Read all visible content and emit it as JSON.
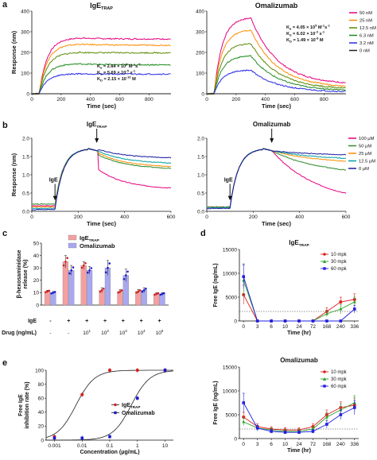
{
  "colors": {
    "c50": "#e6007e",
    "c25": "#ff8c00",
    "c12": "#5a8a00",
    "c6": "#1e8c1e",
    "c3": "#2a2ae6",
    "c0": "#222222",
    "b100": "#e6007e",
    "b50": "#2e8b2e",
    "b25": "#ff8c00",
    "b12": "#00a0a0",
    "b0": "#1a1aa0",
    "trap": "#f4a0a0",
    "trapDot": "#d42020",
    "oma": "#a8a8f0",
    "omaDot": "#1a1ad0",
    "m10": "#e02020",
    "m30": "#2aa02a",
    "m60": "#2020e0"
  },
  "panel_labels": {
    "a": "a",
    "b": "b",
    "c": "c",
    "d": "d",
    "e": "e"
  },
  "chart_data": [
    {
      "id": "a_left",
      "type": "line",
      "title_main": "IgE",
      "title_sub": "TRAP",
      "xlabel": "Time (sec)",
      "ylabel": "Response (nm)",
      "xlim": [
        0,
        950
      ],
      "ylim": [
        0,
        400
      ],
      "xticks": [
        0,
        200,
        400,
        600,
        800
      ],
      "yticks": [
        0,
        100,
        200,
        300,
        400
      ],
      "association_end": 300,
      "kinetics": [
        "K",
        "a",
        " = 2.64 × 10",
        "5",
        " M",
        "-1",
        "s",
        "-1",
        "K",
        "d",
        " = 5.69 × 10",
        "-5",
        " s",
        "-1",
        "K",
        "D",
        " = 2.15 × 10",
        "-10",
        " M"
      ],
      "series": [
        {
          "color_key": "c50",
          "plateau": 270,
          "end": 265
        },
        {
          "color_key": "c25",
          "plateau": 240,
          "end": 235
        },
        {
          "color_key": "c12",
          "plateau": 200,
          "end": 198
        },
        {
          "color_key": "c6",
          "plateau": 145,
          "end": 140
        },
        {
          "color_key": "c3",
          "plateau": 97,
          "end": 95
        },
        {
          "color_key": "c0",
          "plateau": 0,
          "end": 0
        }
      ]
    },
    {
      "id": "a_right",
      "type": "line",
      "title": "Omalizumab",
      "xlabel": "Time (sec)",
      "ylabel": "",
      "xlim": [
        0,
        950
      ],
      "ylim": [
        0,
        400
      ],
      "xticks": [
        0,
        200,
        400,
        600,
        800
      ],
      "yticks": [
        0,
        100,
        200,
        300,
        400
      ],
      "association_end": 300,
      "kinetics": [
        "K",
        "a",
        " = 4.05 × 10",
        "5",
        " M",
        "-1",
        "s",
        "-1",
        "K",
        "d",
        " = 6.02 × 10",
        "-3",
        " s",
        "-1",
        "K",
        "D",
        " = 1.49 × 10",
        "-8",
        " M"
      ],
      "legend": [
        "50 nM",
        "25 nM",
        "12.5 nM",
        "6.3 nM",
        "3.2 nM",
        "0 nM"
      ],
      "series": [
        {
          "color_key": "c50",
          "plateau": 370,
          "end": 45
        },
        {
          "color_key": "c25",
          "plateau": 310,
          "end": 30
        },
        {
          "color_key": "c12",
          "plateau": 245,
          "end": 22
        },
        {
          "color_key": "c6",
          "plateau": 185,
          "end": 14
        },
        {
          "color_key": "c3",
          "plateau": 115,
          "end": 8
        },
        {
          "color_key": "c0",
          "plateau": 0,
          "end": 0
        }
      ]
    },
    {
      "id": "b_left",
      "type": "line",
      "title_main": "IgE",
      "title_sub": "TRAP",
      "ige_label": "IgE",
      "xlabel": "Time (sec)",
      "ylabel": "Response (nm)",
      "xlim": [
        0,
        600
      ],
      "ylim": [
        0,
        2.0
      ],
      "xticks": [
        0,
        200,
        400,
        600
      ],
      "yticks": [
        0.0,
        0.5,
        1.0,
        1.5,
        2.0
      ],
      "series": [
        {
          "color_key": "b100",
          "base": 0.15,
          "drop": 1.15,
          "end": 0.6
        },
        {
          "color_key": "b50",
          "base": 0.2,
          "drop": 1.55,
          "end": 1.15
        },
        {
          "color_key": "b25",
          "base": 0.12,
          "drop": 1.6,
          "end": 1.2
        },
        {
          "color_key": "b12",
          "base": 0.08,
          "drop": 1.65,
          "end": 1.3
        },
        {
          "color_key": "b0",
          "base": 0.05,
          "drop": 1.7,
          "end": 1.45
        }
      ]
    },
    {
      "id": "b_right",
      "type": "line",
      "title": "Omalizumab",
      "ige_label": "IgE",
      "xlabel": "Time (sec)",
      "ylabel": "",
      "xlim": [
        0,
        600
      ],
      "ylim": [
        0,
        2.0
      ],
      "xticks": [
        0,
        200,
        400,
        600
      ],
      "yticks": [
        0.0,
        0.5,
        1.0,
        1.5,
        2.0
      ],
      "legend": [
        "100 μM",
        "50 μM",
        "25 μM",
        "12.5 μM",
        "0 μM"
      ],
      "series": [
        {
          "color_key": "b100",
          "base": 0.12,
          "end": 0.2
        },
        {
          "color_key": "b50",
          "base": 0.12,
          "end": 1.0
        },
        {
          "color_key": "b25",
          "base": 0.1,
          "end": 1.3
        },
        {
          "color_key": "b12",
          "base": 0.1,
          "end": 1.4
        },
        {
          "color_key": "b0",
          "base": 0.08,
          "end": 1.52
        }
      ]
    },
    {
      "id": "c",
      "type": "bar",
      "ylabel_1": "β-hexosaminidase",
      "ylabel_2": "release (%)",
      "ylim": [
        0,
        50
      ],
      "yticks": [
        0,
        10,
        20,
        30,
        40,
        50
      ],
      "row_ige_label": "IgE",
      "row_drug_label": "Drug (ng/mL)",
      "ige_row": [
        "-",
        "+",
        "+",
        "+",
        "+",
        "+",
        "+"
      ],
      "drug_row": [
        "-",
        "-",
        "10",
        "10",
        "10",
        "10",
        "10"
      ],
      "drug_exp": [
        "",
        "",
        "1",
        "2",
        "3",
        "4",
        "5"
      ],
      "legend": [
        {
          "main": "IgE",
          "sub": "TRAP"
        },
        {
          "main": "Omalizumab",
          "sub": ""
        }
      ],
      "series": [
        {
          "name_key": "IgE TRAP",
          "values": [
            11,
            35,
            32,
            12,
            11,
            11,
            9
          ],
          "errors": [
            1,
            5,
            3,
            2,
            1.5,
            1.5,
            1
          ]
        },
        {
          "name_key": "Omalizumab",
          "values": [
            10,
            28,
            28,
            30,
            24,
            12,
            9
          ],
          "errors": [
            1,
            4,
            3,
            6,
            5,
            2,
            1
          ]
        }
      ]
    },
    {
      "id": "d_top",
      "type": "line",
      "title_main": "IgE",
      "title_sub": "TRAP",
      "xlabel": "Time (hr)",
      "ylabel": "Free IgE (ng/mL)",
      "ylim": [
        0,
        15000
      ],
      "yticks": [
        0,
        5000,
        10000,
        15000
      ],
      "xticks": [
        "0",
        "3",
        "6",
        "10",
        "24",
        "72",
        "168",
        "240",
        "336"
      ],
      "dotted": [
        2000,
        0
      ],
      "legend": [
        "10 mpk",
        "30 mpk",
        "60 mpk"
      ],
      "series": [
        {
          "color_key": "m10",
          "values": [
            5500,
            0,
            0,
            0,
            0,
            0,
            2000,
            4000,
            4500
          ],
          "errors": [
            2000,
            0,
            0,
            0,
            0,
            0,
            800,
            1000,
            1200
          ]
        },
        {
          "color_key": "m30",
          "values": [
            8500,
            0,
            0,
            0,
            0,
            0,
            1500,
            2500,
            4000
          ],
          "errors": [
            3500,
            0,
            0,
            0,
            0,
            0,
            600,
            1000,
            1000
          ]
        },
        {
          "color_key": "m60",
          "values": [
            9300,
            0,
            0,
            0,
            0,
            0,
            0,
            0,
            2500
          ],
          "errors": [
            2500,
            0,
            0,
            0,
            0,
            0,
            0,
            0,
            800
          ]
        }
      ]
    },
    {
      "id": "d_bottom",
      "type": "line",
      "title": "Omalizumab",
      "xlabel": "Time (hr)",
      "ylabel": "Free IgE (ng/mL)",
      "ylim": [
        0,
        15000
      ],
      "yticks": [
        0,
        5000,
        10000,
        15000
      ],
      "xticks": [
        "0",
        "3",
        "6",
        "10",
        "24",
        "72",
        "168",
        "240",
        "336"
      ],
      "dotted": [
        2000
      ],
      "legend": [
        "10 mpk",
        "30 mpk",
        "60 mpk"
      ],
      "series": [
        {
          "color_key": "m10",
          "values": [
            4500,
            2500,
            2000,
            1800,
            1800,
            2500,
            5000,
            6500,
            7000
          ],
          "errors": [
            1000,
            600,
            500,
            500,
            500,
            600,
            1000,
            1200,
            1500
          ]
        },
        {
          "color_key": "m30",
          "values": [
            3500,
            2200,
            1800,
            1500,
            1500,
            2000,
            4500,
            6000,
            7500
          ],
          "errors": [
            800,
            500,
            400,
            400,
            400,
            500,
            900,
            1200,
            1500
          ]
        },
        {
          "color_key": "m60",
          "values": [
            7500,
            2200,
            1500,
            1300,
            1300,
            1500,
            3000,
            5000,
            6500
          ],
          "errors": [
            2000,
            600,
            400,
            300,
            300,
            400,
            800,
            1000,
            1500
          ]
        }
      ]
    },
    {
      "id": "e",
      "type": "scatter",
      "xlabel": "Concentration (μg/mL)",
      "ylabel_1": "Free IgE",
      "ylabel_2": "inhibition rate (%)",
      "xscale": "log",
      "xlim": [
        0.0005,
        20
      ],
      "xticks": [
        "0.001",
        "0.01",
        "0.1",
        "1",
        "10"
      ],
      "ylim": [
        0,
        100
      ],
      "yticks": [
        0,
        20,
        40,
        60,
        80,
        100
      ],
      "legend": [
        {
          "main": "IgE",
          "sub": "TRAP"
        },
        {
          "main": "Omalizumab",
          "sub": ""
        }
      ],
      "series": [
        {
          "name_key": "IgE TRAP",
          "x": [
            0.001,
            0.01,
            0.1,
            1,
            10
          ],
          "y": [
            5,
            65,
            100,
            100,
            100
          ]
        },
        {
          "name_key": "Omalizumab",
          "x": [
            0.001,
            0.01,
            0.1,
            1,
            10
          ],
          "y": [
            3,
            3,
            5,
            60,
            100
          ]
        }
      ]
    }
  ]
}
